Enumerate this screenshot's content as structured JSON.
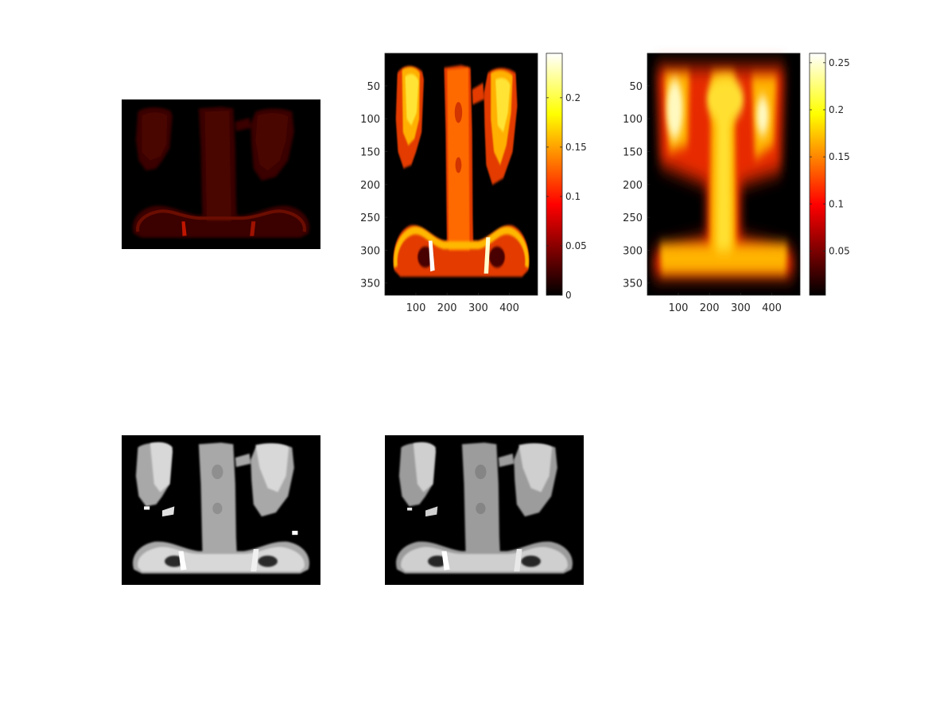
{
  "figure": {
    "background": "#ffffff",
    "colormaps": {
      "hot": [
        "#000000",
        "#ff0000",
        "#ffff00",
        "#ffffff"
      ],
      "gray": [
        "#000000",
        "#ffffff"
      ]
    }
  },
  "chart_data": [
    {
      "type": "heatmap",
      "description_id": "top-left-image",
      "colormap": "hot",
      "axes_visible": false,
      "intensity": "dark red, low"
    },
    {
      "type": "heatmap",
      "description_id": "top-middle-image",
      "colormap": "hot",
      "xlim": [
        1,
        490
      ],
      "ylim": [
        1,
        368
      ],
      "y_reversed": true,
      "x_ticks": [
        100,
        200,
        300,
        400
      ],
      "y_ticks": [
        50,
        100,
        150,
        200,
        250,
        300,
        350
      ],
      "colorbar": {
        "range": [
          0,
          0.245
        ],
        "ticks": [
          {
            "value": 0,
            "label": "0"
          },
          {
            "value": 0.05,
            "label": "0.05"
          },
          {
            "value": 0.1,
            "label": "0.1"
          },
          {
            "value": 0.15,
            "label": "0.15"
          },
          {
            "value": 0.2,
            "label": "0.2"
          }
        ]
      }
    },
    {
      "type": "heatmap",
      "description_id": "top-right-image",
      "colormap": "hot",
      "xlim": [
        1,
        490
      ],
      "ylim": [
        1,
        368
      ],
      "y_reversed": true,
      "x_ticks": [
        100,
        200,
        300,
        400
      ],
      "y_ticks": [
        50,
        100,
        150,
        200,
        250,
        300,
        350
      ],
      "colorbar": {
        "range": [
          0.003,
          0.26
        ],
        "ticks": [
          {
            "value": 0.05,
            "label": "0.05"
          },
          {
            "value": 0.1,
            "label": "0.1"
          },
          {
            "value": 0.15,
            "label": "0.15"
          },
          {
            "value": 0.2,
            "label": "0.2"
          },
          {
            "value": 0.25,
            "label": "0.25"
          }
        ]
      }
    },
    {
      "type": "heatmap",
      "description_id": "bottom-left-image",
      "colormap": "gray",
      "axes_visible": false
    },
    {
      "type": "heatmap",
      "description_id": "bottom-middle-image",
      "colormap": "gray",
      "axes_visible": false
    }
  ]
}
